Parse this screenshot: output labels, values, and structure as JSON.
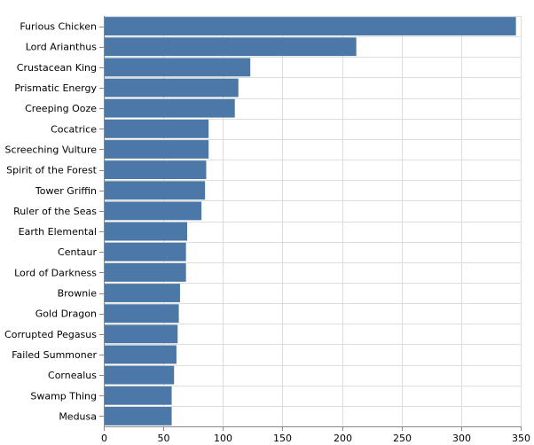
{
  "chart_data": {
    "type": "bar",
    "orientation": "horizontal",
    "categories": [
      "Furious Chicken",
      "Lord Arianthus",
      "Crustacean King",
      "Prismatic Energy",
      "Creeping Ooze",
      "Cocatrice",
      "Screeching Vulture",
      "Spirit of the Forest",
      "Tower Griffin",
      "Ruler of the Seas",
      "Earth Elemental",
      "Centaur",
      "Lord of Darkness",
      "Brownie",
      "Gold Dragon",
      "Corrupted Pegasus",
      "Failed Summoner",
      "Cornealus",
      "Swamp Thing",
      "Medusa"
    ],
    "values": [
      346,
      212,
      123,
      113,
      110,
      88,
      88,
      86,
      85,
      82,
      70,
      69,
      69,
      64,
      63,
      62,
      61,
      59,
      57,
      57
    ],
    "xlim": [
      0,
      350
    ],
    "x_ticks": [
      "0",
      "50",
      "100",
      "150",
      "200",
      "250",
      "300",
      "350"
    ],
    "title": "",
    "xlabel": "",
    "ylabel": "",
    "bar_color": "#4c78a8",
    "grid": true,
    "legend": "none"
  }
}
